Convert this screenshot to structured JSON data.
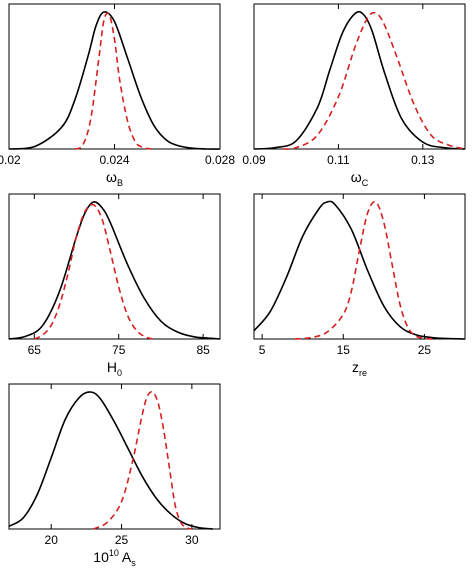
{
  "chart_data": [
    {
      "type": "line",
      "xlabel": "ω",
      "xlabel_sub": "B",
      "xlim": [
        0.02,
        0.028
      ],
      "xticks": [
        "0.02",
        "0.024",
        "0.028"
      ],
      "grid": false,
      "series": [
        {
          "style": "solid-black",
          "color": "#000000",
          "x": [
            0.02,
            0.021,
            0.022,
            0.0225,
            0.023,
            0.0233,
            0.0236,
            0.024,
            0.0245,
            0.025,
            0.0255,
            0.026,
            0.0265,
            0.027,
            0.0275,
            0.028
          ],
          "y": [
            0.0,
            0.02,
            0.16,
            0.36,
            0.68,
            0.9,
            1.0,
            0.93,
            0.66,
            0.38,
            0.17,
            0.06,
            0.02,
            0.005,
            0.0,
            0.0
          ]
        },
        {
          "style": "dashed-red",
          "color": "#d62020",
          "x": [
            0.0225,
            0.0228,
            0.0231,
            0.0234,
            0.0236,
            0.0238,
            0.024,
            0.0242,
            0.0245,
            0.0248,
            0.0251,
            0.0254
          ],
          "y": [
            0.0,
            0.03,
            0.22,
            0.65,
            0.94,
            0.98,
            0.8,
            0.5,
            0.2,
            0.05,
            0.01,
            0.0
          ]
        }
      ]
    },
    {
      "type": "line",
      "xlabel": "ω",
      "xlabel_sub": "C",
      "xlim": [
        0.09,
        0.14
      ],
      "xticks": [
        "0.09",
        "0.11",
        "0.13"
      ],
      "grid": false,
      "series": [
        {
          "style": "solid-black",
          "color": "#000000",
          "x": [
            0.09,
            0.095,
            0.1,
            0.105,
            0.108,
            0.111,
            0.114,
            0.116,
            0.118,
            0.121,
            0.125,
            0.13,
            0.135,
            0.14
          ],
          "y": [
            0.0,
            0.01,
            0.06,
            0.3,
            0.58,
            0.85,
            0.99,
            0.98,
            0.86,
            0.55,
            0.22,
            0.05,
            0.01,
            0.0
          ]
        },
        {
          "style": "dashed-red",
          "color": "#d62020",
          "x": [
            0.097,
            0.1,
            0.105,
            0.11,
            0.114,
            0.117,
            0.119,
            0.121,
            0.124,
            0.128,
            0.132,
            0.136,
            0.14
          ],
          "y": [
            0.0,
            0.01,
            0.1,
            0.38,
            0.75,
            0.96,
            0.99,
            0.9,
            0.66,
            0.32,
            0.1,
            0.03,
            0.0
          ]
        }
      ]
    },
    {
      "type": "line",
      "xlabel": "H",
      "xlabel_sub": "0",
      "xlim": [
        62,
        87
      ],
      "xticks": [
        "65",
        "75",
        "85"
      ],
      "grid": false,
      "series": [
        {
          "style": "solid-black",
          "color": "#000000",
          "x": [
            62,
            64,
            66,
            68,
            70,
            71,
            72,
            73,
            74,
            76,
            78,
            80,
            82,
            84,
            86,
            87
          ],
          "y": [
            0.0,
            0.02,
            0.1,
            0.35,
            0.75,
            0.92,
            1.0,
            0.96,
            0.85,
            0.55,
            0.3,
            0.13,
            0.05,
            0.015,
            0.005,
            0.0
          ]
        },
        {
          "style": "dashed-red",
          "color": "#d62020",
          "x": [
            65,
            66,
            67,
            68,
            69,
            70,
            71,
            72,
            73,
            74,
            75,
            76,
            77,
            78,
            79
          ],
          "y": [
            0.0,
            0.03,
            0.1,
            0.25,
            0.48,
            0.75,
            0.93,
            0.98,
            0.88,
            0.64,
            0.38,
            0.18,
            0.07,
            0.02,
            0.0
          ]
        }
      ]
    },
    {
      "type": "line",
      "xlabel": "z",
      "xlabel_sub": "re",
      "xlim": [
        4,
        30
      ],
      "xticks": [
        "5",
        "15",
        "25"
      ],
      "grid": false,
      "series": [
        {
          "style": "solid-black",
          "color": "#000000",
          "x": [
            4,
            6,
            8,
            10,
            12,
            13,
            14,
            16,
            18,
            20,
            22,
            24,
            26,
            28,
            30
          ],
          "y": [
            0.06,
            0.2,
            0.45,
            0.75,
            0.95,
            1.0,
            0.98,
            0.8,
            0.5,
            0.24,
            0.09,
            0.03,
            0.01,
            0.003,
            0.0
          ]
        },
        {
          "style": "dashed-red",
          "color": "#d62020",
          "x": [
            9,
            11,
            13,
            15,
            16,
            17,
            18,
            19,
            20,
            21,
            22,
            23,
            24,
            25,
            26
          ],
          "y": [
            0.0,
            0.01,
            0.05,
            0.18,
            0.35,
            0.65,
            0.92,
            1.0,
            0.85,
            0.55,
            0.25,
            0.08,
            0.02,
            0.005,
            0.0
          ]
        }
      ]
    },
    {
      "type": "line",
      "xlabel": "10",
      "xlabel_sup": "10",
      "xlabel_var": "A",
      "xlabel_sub": "s",
      "xlim": [
        17,
        32
      ],
      "xticks": [
        "20",
        "25",
        "30"
      ],
      "grid": false,
      "series": [
        {
          "style": "solid-black",
          "color": "#000000",
          "x": [
            17,
            18,
            19,
            20,
            21,
            22,
            22.8,
            23.5,
            24.5,
            25.5,
            26.5,
            27.5,
            28.5,
            29.5,
            30.5,
            31.5
          ],
          "y": [
            0.02,
            0.08,
            0.25,
            0.52,
            0.8,
            0.96,
            1.0,
            0.95,
            0.78,
            0.58,
            0.38,
            0.22,
            0.11,
            0.04,
            0.01,
            0.0
          ]
        },
        {
          "style": "dashed-red",
          "color": "#d62020",
          "x": [
            23,
            24,
            25,
            25.8,
            26.4,
            26.8,
            27.2,
            27.6,
            28.0,
            28.4,
            28.8,
            29.2,
            29.6,
            30.0
          ],
          "y": [
            0.0,
            0.05,
            0.2,
            0.5,
            0.8,
            0.96,
            1.0,
            0.92,
            0.72,
            0.45,
            0.18,
            0.05,
            0.01,
            0.0
          ]
        }
      ]
    }
  ]
}
